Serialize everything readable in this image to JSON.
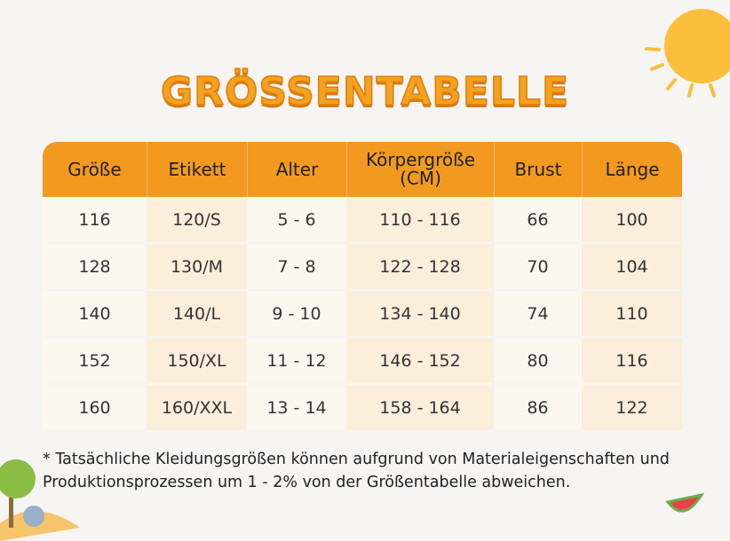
{
  "title": "GRÖSSENTABELLE",
  "table": {
    "headers": [
      "Größe",
      "Etikett",
      "Alter",
      "Körpergröße\n(CM)",
      "Brust",
      "Länge"
    ],
    "rows": [
      [
        "116",
        "120/S",
        "5 - 6",
        "110 - 116",
        "66",
        "100"
      ],
      [
        "128",
        "130/M",
        "7 - 8",
        "122 - 128",
        "70",
        "104"
      ],
      [
        "140",
        "140/L",
        "9 - 10",
        "134 - 140",
        "74",
        "110"
      ],
      [
        "152",
        "150/XL",
        "11 - 12",
        "146 - 152",
        "80",
        "116"
      ],
      [
        "160",
        "160/XXL",
        "13 - 14",
        "158 - 164",
        "86",
        "122"
      ]
    ]
  },
  "footnote": "* Tatsächliche Kleidungsgrößen können aufgrund von Materialeigenschaften und Produktionsprozessen um 1 - 2% von der Größentabelle abweichen."
}
